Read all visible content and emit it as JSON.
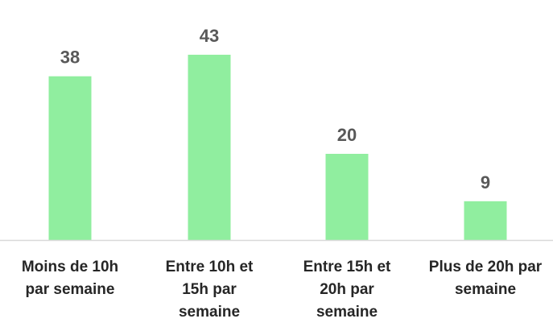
{
  "chart_data": {
    "type": "bar",
    "categories": [
      [
        "Moins de 10h",
        "par semaine"
      ],
      [
        "Entre 10h et",
        "15h par",
        "semaine"
      ],
      [
        "Entre 15h et",
        "20h par",
        "semaine"
      ],
      [
        "Plus de 20h par",
        "semaine"
      ]
    ],
    "values": [
      38,
      43,
      20,
      9
    ],
    "title": "",
    "xlabel": "",
    "ylabel": "",
    "ylim": [
      0,
      50
    ],
    "grid": false,
    "legend": "none",
    "data_labels": true,
    "colors": {
      "bar": "#90EE9F",
      "axis": "#d9d9d9",
      "value_text": "#595959",
      "category_text": "#262626"
    }
  }
}
